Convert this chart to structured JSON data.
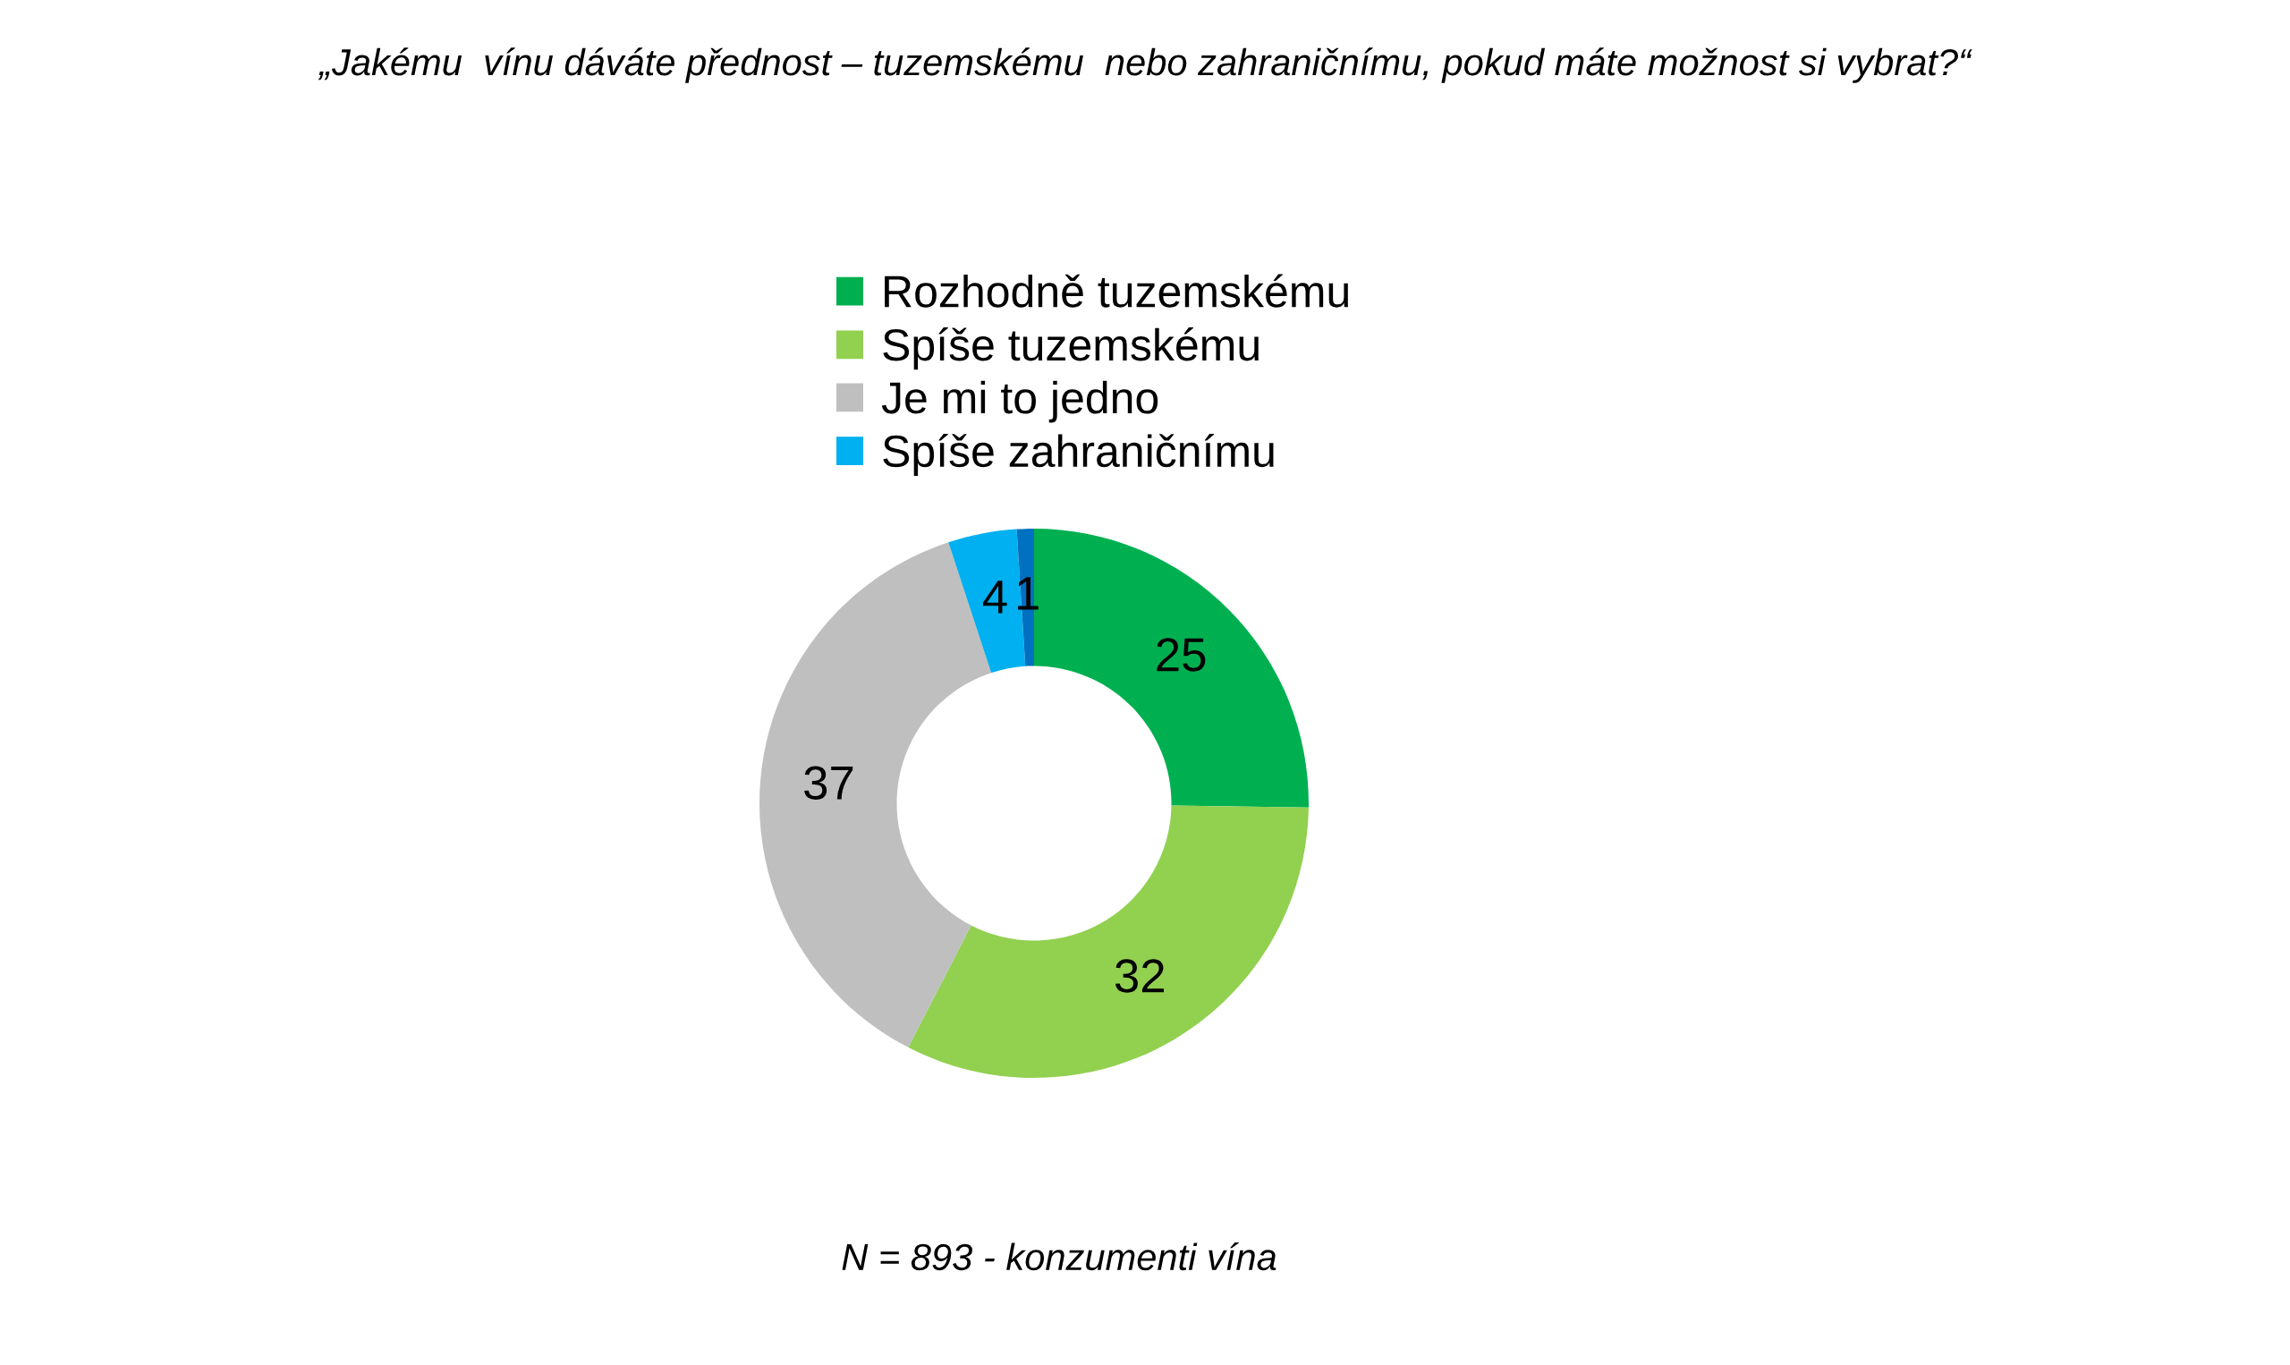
{
  "chart_data": {
    "type": "donut",
    "title": "„Jakému  vínu dáváte přednost – tuzemskému  nebo zahraničnímu, pokud máte možnost si vybrat?“",
    "categories": [
      "Rozhodně tuzemskému",
      "Spíše tuzemskému",
      "Je mi to jedno",
      "Spíše zahraničnímu",
      null
    ],
    "values": [
      25,
      32,
      37,
      4,
      1
    ],
    "colors": [
      "#00b050",
      "#92d050",
      "#bfbfbf",
      "#00b0f0",
      "#0070c0"
    ],
    "data_labels": true,
    "legend": "top",
    "annotations": [
      "N = 893 - konzumenti vína"
    ]
  }
}
